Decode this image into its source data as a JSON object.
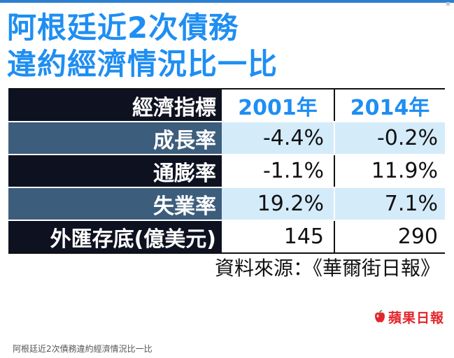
{
  "title": {
    "line1": "阿根廷近2次債務",
    "line2": "違約經濟情況比一比"
  },
  "table": {
    "header": {
      "label": "經濟指標",
      "col1": "2001年",
      "col2": "2014年"
    },
    "rows": [
      {
        "label": "成長率",
        "v2001": "-4.4%",
        "v2014": "-0.2%"
      },
      {
        "label": "通膨率",
        "v2001": "-1.1%",
        "v2014": "11.9%"
      },
      {
        "label": "失業率",
        "v2001": "19.2%",
        "v2014": "7.1%"
      },
      {
        "label": "外匯存底(億美元)",
        "v2001": "145",
        "v2014": "290"
      }
    ]
  },
  "source": "資料來源：《華爾街日報》",
  "logo": {
    "text": "蘋果日報"
  },
  "caption": "阿根廷近2次債務違約經濟情況比一比",
  "colors": {
    "title_blue": "#1f8ef2",
    "dark_row": "#0e1120",
    "steel_row": "#3d5d7c",
    "light_cell": "#d4ebfa",
    "logo_red": "#e3262b"
  }
}
